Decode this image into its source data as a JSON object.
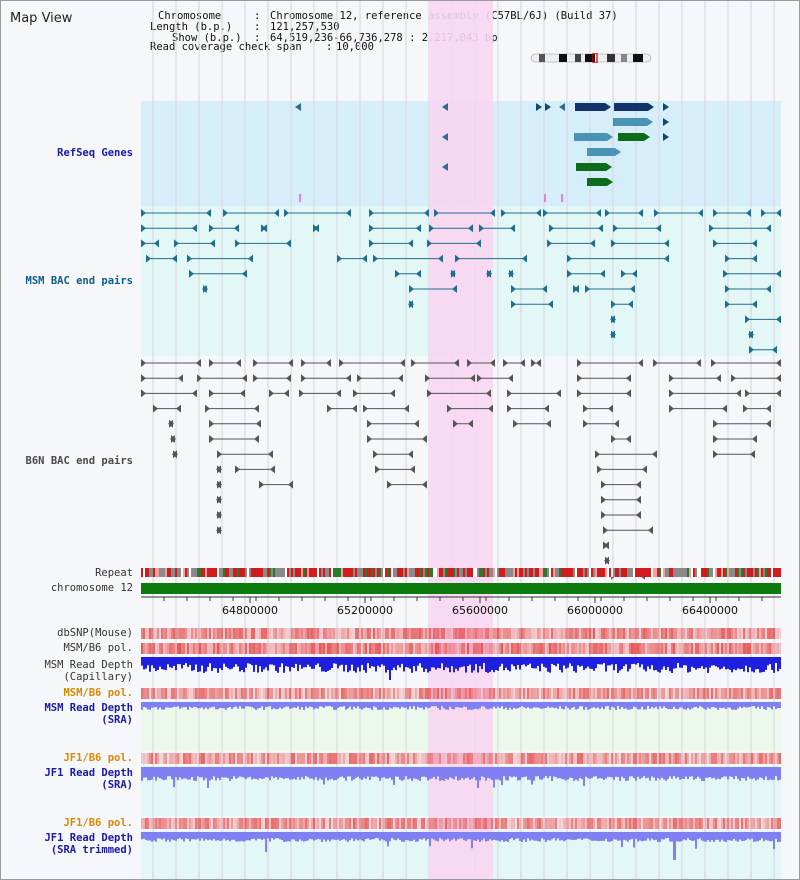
{
  "app": {
    "title": "Map View"
  },
  "info": {
    "chromosome_key": "Chromosome",
    "chromosome_val": "Chromosome 12, reference assembly (C57BL/6J) (Build 37)",
    "length_key": "Length (b.p.)",
    "length_val": "121,257,530",
    "show_key": "Show (b.p.)",
    "show_val": "64,519,236-66,736,278 : 2,217,043 bp",
    "coverage_key": "Read coverage check span",
    "coverage_val": "10,000"
  },
  "tracks": {
    "refseq": "RefSeq Genes",
    "msm_bac": "MSM BAC end pairs",
    "b6n_bac": "B6N BAC end pairs",
    "repeat": "Repeat",
    "chromosome": "chromosome 12",
    "dbsnp": "dbSNP(Mouse)",
    "msm_pol": "MSM/B6 pol.",
    "msm_depth_cap": "MSM Read Depth\n(Capillary)",
    "msm_pol2": "MSM/B6 pol.",
    "msm_depth_sra": "MSM Read Depth\n(SRA)",
    "jf1_pol": "JF1/B6 pol.",
    "jf1_depth_sra": "JF1 Read Depth\n(SRA)",
    "jf1_pol2": "JF1/B6 pol.",
    "jf1_depth_trim": "JF1 Read Depth\n(SRA trimmed)"
  },
  "axis": {
    "ticks": [
      "64800000",
      "65200000",
      "65600000",
      "66000000",
      "66400000"
    ]
  },
  "colors": {
    "highlight": "#f8d6f1",
    "refseq_bg": "#d6eef9",
    "bac_bg": "#e4f7f7",
    "msm_color": "#1e6f8f",
    "b6n_color": "#555555",
    "chromosome_green": "#0d7a0d",
    "snp_red": "#e23a3a",
    "depth_blue": "#1f1fe0",
    "depth_light": "#8080f2"
  }
}
